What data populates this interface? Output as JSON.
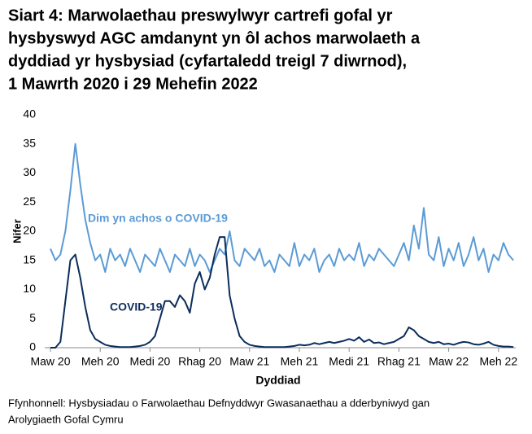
{
  "chart_data": {
    "type": "line",
    "title": [
      "Siart 4: Marwolaethau preswylwyr cartrefi gofal yr",
      "hysbyswyd AGC amdanynt yn ôl achos marwolaeth a",
      "dyddiad yr hysbysiad (cyfartaledd treigl 7 diwrnod),",
      "1 Mawrth 2020 i 29 Mehefin 2022"
    ],
    "x_label": "Dyddiad",
    "y_label": "Nifer",
    "source": [
      "Ffynhonnell: Hysbysiadau o Farwolaethau Defnyddwyr Gwasanaethau a dderbyniwyd gan",
      "Arolygiaeth Gofal Cymru"
    ],
    "categories": [
      "Maw 20",
      null,
      null,
      null,
      null,
      null,
      null,
      null,
      null,
      null,
      "Meh 20",
      null,
      null,
      null,
      null,
      null,
      null,
      null,
      null,
      null,
      "Medi 20",
      null,
      null,
      null,
      null,
      null,
      null,
      null,
      null,
      null,
      "Rhag 20",
      null,
      null,
      null,
      null,
      null,
      null,
      null,
      null,
      null,
      "Maw 21",
      null,
      null,
      null,
      null,
      null,
      null,
      null,
      null,
      null,
      "Meh 21",
      null,
      null,
      null,
      null,
      null,
      null,
      null,
      null,
      null,
      "Medi 21",
      null,
      null,
      null,
      null,
      null,
      null,
      null,
      null,
      null,
      "Rhag 21",
      null,
      null,
      null,
      null,
      null,
      null,
      null,
      null,
      null,
      "Maw 22",
      null,
      null,
      null,
      null,
      null,
      null,
      null,
      null,
      null,
      "Meh 22",
      null,
      null,
      null
    ],
    "series": [
      {
        "name": "Dim yn achos o COVID-19",
        "color": "#5b9bd5",
        "values": [
          17,
          15,
          16,
          20,
          27,
          35,
          28,
          22,
          18,
          15,
          16,
          13,
          17,
          15,
          16,
          14,
          17,
          15,
          13,
          16,
          15,
          14,
          17,
          15,
          13,
          16,
          15,
          14,
          17,
          14,
          16,
          15,
          13,
          15,
          17,
          16,
          20,
          15,
          14,
          17,
          16,
          15,
          17,
          14,
          15,
          13,
          16,
          15,
          14,
          18,
          14,
          16,
          15,
          17,
          13,
          15,
          16,
          14,
          17,
          15,
          16,
          15,
          18,
          14,
          16,
          15,
          17,
          16,
          15,
          14,
          16,
          18,
          15,
          21,
          17,
          24,
          16,
          15,
          19,
          14,
          17,
          15,
          18,
          14,
          16,
          19,
          15,
          17,
          13,
          16,
          15,
          18,
          16,
          15
        ]
      },
      {
        "name": "COVID-19",
        "color": "#0b2d5b",
        "values": [
          0,
          0,
          1,
          8,
          15,
          16,
          12,
          7,
          3,
          1.5,
          1,
          0.5,
          0.3,
          0.2,
          0.1,
          0.1,
          0.1,
          0.2,
          0.3,
          0.5,
          1,
          2,
          5,
          8,
          8,
          7,
          9,
          8,
          6,
          11,
          13,
          10,
          12,
          16,
          19,
          19,
          9,
          5,
          2,
          1,
          0.5,
          0.3,
          0.2,
          0.1,
          0.1,
          0.1,
          0.1,
          0.1,
          0.2,
          0.3,
          0.5,
          0.4,
          0.5,
          0.8,
          0.6,
          0.8,
          1,
          0.8,
          1,
          1.2,
          1.5,
          1.2,
          1.8,
          1,
          1.4,
          0.8,
          0.9,
          0.6,
          0.8,
          1,
          1.5,
          2,
          3.5,
          3,
          2,
          1.5,
          1,
          0.8,
          1,
          0.6,
          0.7,
          0.5,
          0.8,
          1,
          0.9,
          0.6,
          0.5,
          0.7,
          1,
          0.5,
          0.3,
          0.2,
          0.2,
          0.1
        ]
      }
    ],
    "ylim": [
      0,
      40
    ],
    "yticks": [
      0,
      5,
      10,
      15,
      20,
      25,
      30,
      35,
      40
    ],
    "grid": false
  }
}
